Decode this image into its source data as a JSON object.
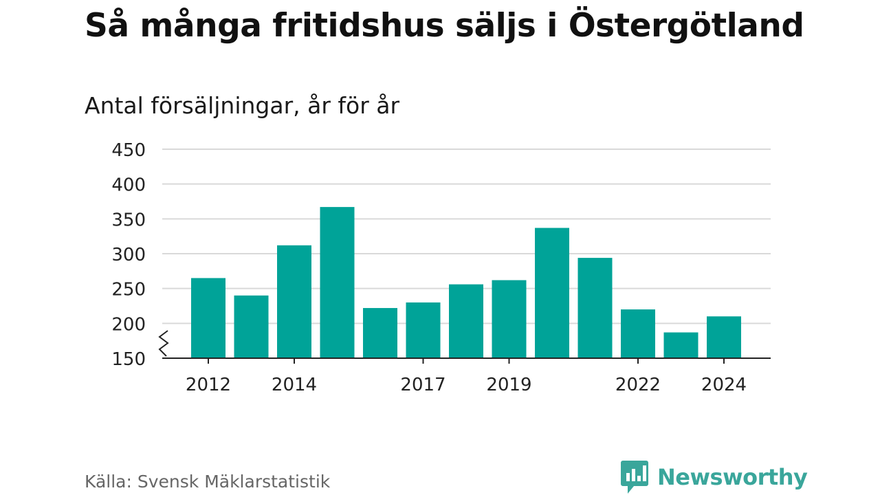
{
  "header": {
    "title": "Så många fritidshus säljs i Östergötland",
    "subtitle": "Antal försäljningar, år för år"
  },
  "footer": {
    "source": "Källa: Svensk Mäklarstatistik",
    "brand": "Newsworthy"
  },
  "colors": {
    "bar": "#00a398",
    "grid": "#d9d9d9",
    "axis": "#222222",
    "brand": "#3aa69b"
  },
  "chart_data": {
    "type": "bar",
    "categories": [
      "2012",
      "2013",
      "2014",
      "2015",
      "2016",
      "2017",
      "2018",
      "2019",
      "2020",
      "2021",
      "2022",
      "2023",
      "2024"
    ],
    "values": [
      265,
      240,
      312,
      367,
      222,
      230,
      256,
      262,
      337,
      294,
      220,
      187,
      210
    ],
    "x_tick_labels": [
      "2012",
      "2014",
      "2017",
      "2019",
      "2022",
      "2024"
    ],
    "y_ticks": [
      150,
      200,
      250,
      300,
      350,
      400,
      450
    ],
    "ylim": [
      150,
      450
    ],
    "y_axis_break": true,
    "grid": true,
    "title": "Så många fritidshus säljs i Östergötland",
    "subtitle": "Antal försäljningar, år för år",
    "xlabel": "",
    "ylabel": ""
  }
}
